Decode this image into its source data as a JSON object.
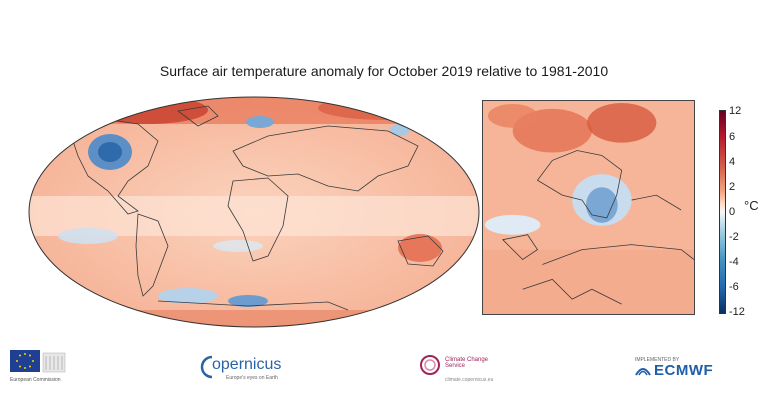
{
  "title": "Surface air temperature anomaly for October 2019 relative to 1981-2010",
  "colorbar": {
    "unit": "°C",
    "ticks": [
      "12",
      "6",
      "4",
      "2",
      "0",
      "-2",
      "-4",
      "-6",
      "-12"
    ],
    "colors": [
      "#67001f",
      "#b2182b",
      "#d6604d",
      "#f4a582",
      "#fddbc7",
      "#f7f7f7",
      "#d1e5f0",
      "#92c5de",
      "#4393c3",
      "#2166ac",
      "#053061"
    ]
  },
  "maps": {
    "global": {
      "projection": "robinson",
      "region": "world"
    },
    "inset": {
      "region": "europe"
    }
  },
  "logos": {
    "eu": {
      "icon": "eu-flag-icon",
      "text": "European Commission"
    },
    "copernicus": {
      "word": "opernicus",
      "sub": "Europe's eyes on Earth"
    },
    "c3s": {
      "word": "Climate Change Service",
      "sub": "climate.copernicus.eu"
    },
    "ecmwf": {
      "pre": "IMPLEMENTED BY",
      "word": "ECMWF"
    }
  }
}
